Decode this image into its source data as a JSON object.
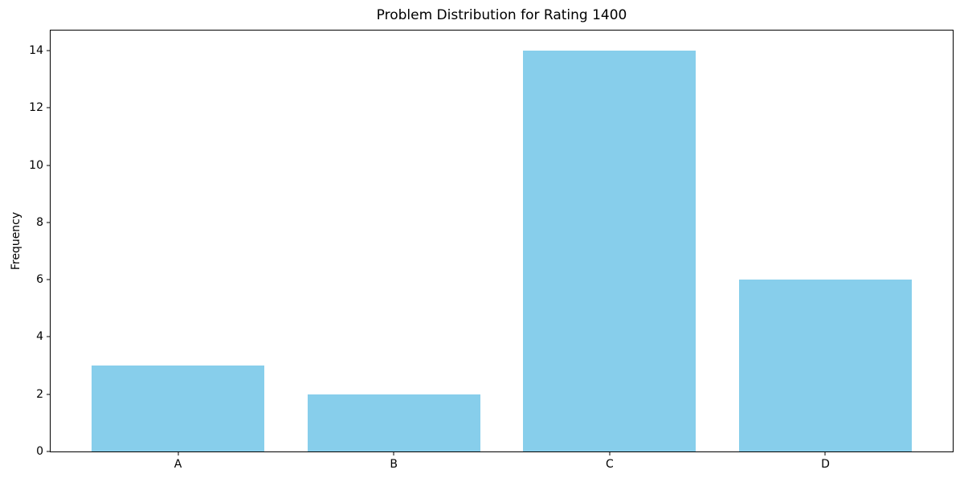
{
  "figure": {
    "background_color": "#ffffff",
    "text_color": "#000000"
  },
  "chart_data": {
    "type": "bar",
    "title": "Problem Distribution for Rating 1400",
    "xlabel": "",
    "ylabel": "Frequency",
    "categories": [
      "A",
      "B",
      "C",
      "D"
    ],
    "values": [
      3,
      2,
      14,
      6
    ],
    "yticks": [
      0,
      2,
      4,
      6,
      8,
      10,
      12,
      14
    ],
    "ylim": [
      0,
      14.7
    ],
    "xlim": [
      -0.59,
      3.59
    ],
    "bar_width": 0.8,
    "bar_color": "#87CEEB",
    "spine_color": "#000000",
    "grid": false,
    "legend_position": "none"
  }
}
